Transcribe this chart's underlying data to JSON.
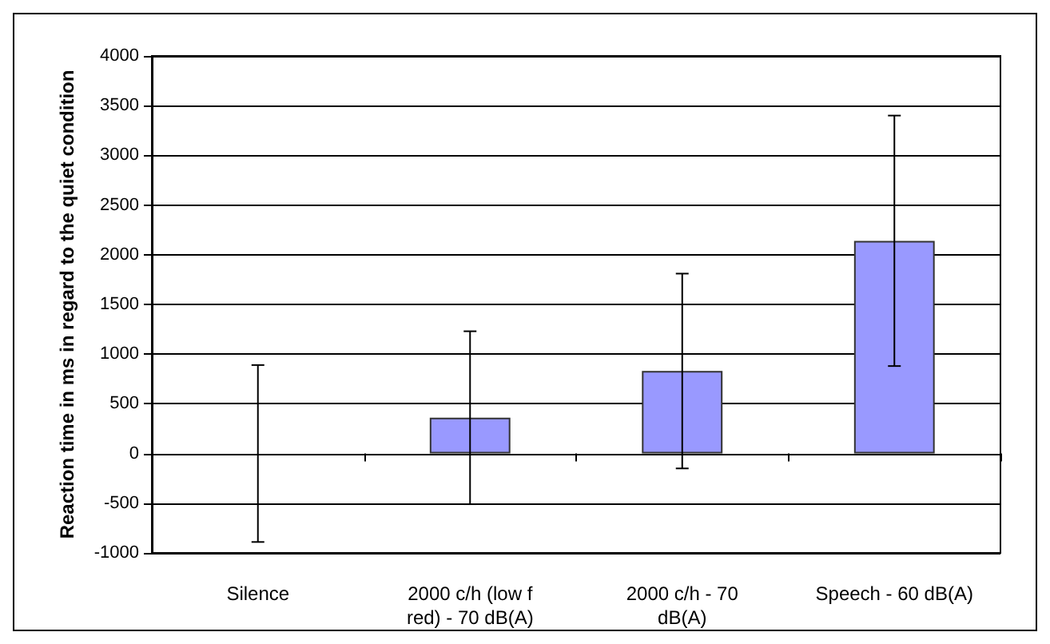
{
  "chart_data": {
    "type": "bar",
    "ylabel": "Reaction time in ms in regard to the quiet condition",
    "categories": [
      "Silence",
      "2000 c/h (low f\nred) - 70 dB(A)",
      "2000 c/h - 70\ndB(A)",
      "Speech - 60 dB(A)"
    ],
    "values": [
      0,
      360,
      830,
      2140
    ],
    "errors": [
      890,
      870,
      980,
      1260
    ],
    "color": "#9999ff",
    "ylim": [
      -1000,
      4000
    ],
    "yticks": [
      -1000,
      -500,
      0,
      500,
      1000,
      1500,
      2000,
      2500,
      3000,
      3500,
      4000
    ],
    "grid": "y"
  }
}
